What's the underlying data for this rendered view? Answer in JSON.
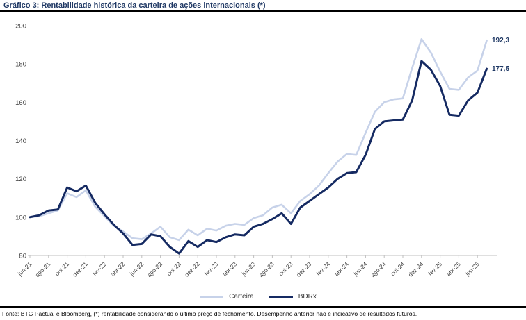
{
  "header": {
    "title": "Gráfico 3: Rentabilidade histórica da carteira de ações internacionais (*)"
  },
  "chart_data": {
    "type": "line",
    "title": "Gráfico 3: Rentabilidade histórica da carteira de ações internacionais (*)",
    "x": [
      "jun-21",
      "jul-21",
      "ago-21",
      "set-21",
      "out-21",
      "nov-21",
      "dez-21",
      "jan-22",
      "fev-22",
      "mar-22",
      "abr-22",
      "mai-22",
      "jun-22",
      "jul-22",
      "ago-22",
      "set-22",
      "out-22",
      "nov-22",
      "dez-22",
      "jan-23",
      "fev-23",
      "mar-23",
      "abr-23",
      "mai-23",
      "jun-23",
      "jul-23",
      "ago-23",
      "set-23",
      "out-23",
      "nov-23",
      "dez-23",
      "jan-24",
      "fev-24",
      "mar-24",
      "abr-24",
      "mai-24",
      "jun-24",
      "jul-24",
      "ago-24",
      "set-24",
      "out-24",
      "nov-24",
      "dez-24",
      "jan-25",
      "fev-25",
      "mar-25",
      "abr-25",
      "mai-25",
      "jun-25",
      "jul-25"
    ],
    "x_tick_labels": [
      "jun-21",
      "ago-21",
      "out-21",
      "dez-21",
      "fev-22",
      "abr-22",
      "jun-22",
      "ago-22",
      "out-22",
      "dez-22",
      "fev-23",
      "abr-23",
      "jun-23",
      "ago-23",
      "out-23",
      "dez-23",
      "fev-24",
      "abr-24",
      "jun-24",
      "ago-24",
      "out-24",
      "dez-24",
      "fev-25",
      "abr-25",
      "jun-25"
    ],
    "series": [
      {
        "name": "Carteira",
        "color": "#C7D2E9",
        "values": [
          100,
          100.5,
          102,
          103.5,
          112.5,
          110.5,
          114,
          105.5,
          100.5,
          95.5,
          92.5,
          89,
          88.5,
          91.5,
          95,
          89.5,
          88,
          93.5,
          90.5,
          94,
          93,
          95.5,
          96.5,
          96,
          99.5,
          101,
          105,
          106.5,
          102,
          108.5,
          112,
          116.5,
          123,
          129,
          133,
          132.5,
          144,
          155,
          160,
          161.5,
          162,
          178,
          193,
          186,
          176,
          167,
          166.5,
          173,
          176.5,
          192.3
        ]
      },
      {
        "name": "BDRx",
        "color": "#152A62",
        "values": [
          100,
          101,
          103.5,
          104,
          115.5,
          113.5,
          116.5,
          107.5,
          101.5,
          96,
          91.5,
          85.5,
          86,
          91,
          90,
          84.5,
          81,
          87.5,
          84.5,
          88,
          87,
          89.5,
          91,
          90.5,
          95,
          96.5,
          99,
          102,
          96.5,
          105,
          108.5,
          112,
          115.5,
          120,
          123,
          123.5,
          132.5,
          146,
          150,
          150.5,
          151,
          161,
          181.5,
          177,
          168.5,
          153.5,
          153,
          161,
          165,
          177.5
        ]
      }
    ],
    "end_labels": [
      {
        "text": "192,3",
        "series": "Carteira",
        "value": 192.3
      },
      {
        "text": "177,5",
        "series": "BDRx",
        "value": 177.5
      }
    ],
    "ylim": [
      80,
      200
    ],
    "y_ticks": [
      80,
      100,
      120,
      140,
      160,
      180,
      200
    ],
    "grid": false,
    "legend_position": "bottom",
    "axis_color": "#BFBFBF",
    "tick_label_color": "#404040",
    "end_label_color": "#1F3864"
  },
  "legend": {
    "items": [
      {
        "label": "Carteira",
        "color": "#C7D2E9"
      },
      {
        "label": "BDRx",
        "color": "#152A62"
      }
    ]
  },
  "footer": {
    "text": "Fonte: BTG Pactual e Bloomberg, (*) rentabilidade considerando o último preço de fechamento. Desempenho anterior não é indicativo de resultados futuros."
  }
}
